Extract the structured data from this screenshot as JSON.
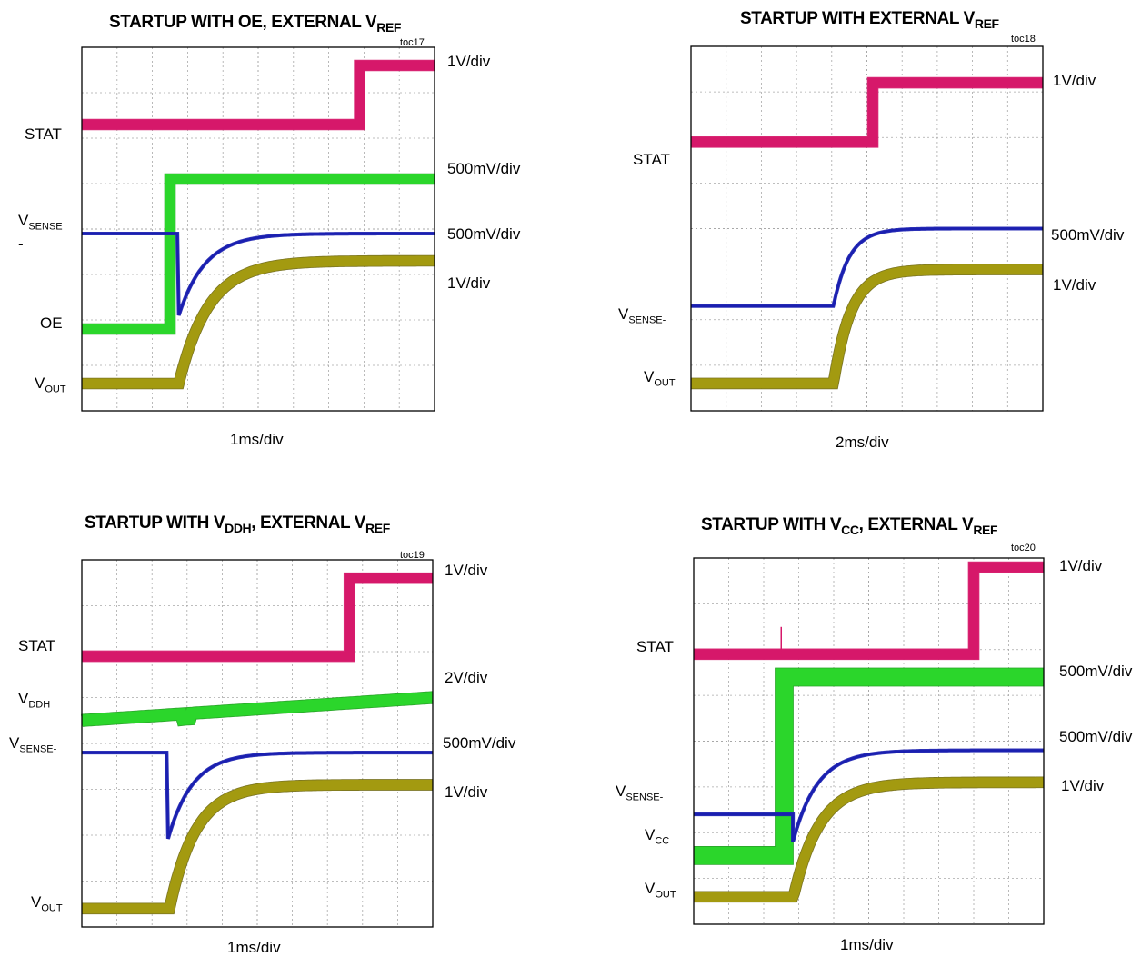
{
  "figures": [
    {
      "id": "toc17",
      "title": {
        "prefix": "STARTUP WITH OE, EXTERNAL V",
        "sub": "REF",
        "suffix": ""
      },
      "toc": "toc17",
      "xlabel": "1ms/div",
      "channel_labels": [
        {
          "main": "STAT",
          "sub": "",
          "rest": ""
        },
        {
          "main": "V",
          "sub": "SENSE",
          "rest": "-"
        },
        {
          "main": "OE",
          "sub": "",
          "rest": ""
        },
        {
          "main": "V",
          "sub": "OUT",
          "rest": ""
        }
      ],
      "scale_labels": [
        "1V/div",
        "500mV/div",
        "500mV/div",
        "1V/div"
      ]
    },
    {
      "id": "toc18",
      "title": {
        "prefix": "STARTUP WITH EXTERNAL V",
        "sub": "REF",
        "suffix": ""
      },
      "toc": "toc18",
      "xlabel": "2ms/div",
      "channel_labels": [
        {
          "main": "STAT",
          "sub": "",
          "rest": ""
        },
        {
          "main": "V",
          "sub": "SENSE-",
          "rest": ""
        },
        {
          "main": "V",
          "sub": "OUT",
          "rest": ""
        }
      ],
      "scale_labels": [
        "1V/div",
        "500mV/div",
        "1V/div"
      ]
    },
    {
      "id": "toc19",
      "title": {
        "prefix": "STARTUP WITH V",
        "sub": "DDH",
        "suffix": ", EXTERNAL V",
        "sub2": "REF"
      },
      "toc": "toc19",
      "xlabel": "1ms/div",
      "channel_labels": [
        {
          "main": "STAT",
          "sub": "",
          "rest": ""
        },
        {
          "main": "V",
          "sub": "DDH",
          "rest": ""
        },
        {
          "main": "V",
          "sub": "SENSE-",
          "rest": ""
        },
        {
          "main": "V",
          "sub": "OUT",
          "rest": ""
        }
      ],
      "scale_labels": [
        "1V/div",
        "2V/div",
        "500mV/div",
        "1V/div"
      ]
    },
    {
      "id": "toc20",
      "title": {
        "prefix": "STARTUP WITH V",
        "sub": "CC",
        "suffix": ", EXTERNAL V",
        "sub2": "REF"
      },
      "toc": "toc20",
      "xlabel": "1ms/div",
      "channel_labels": [
        {
          "main": "STAT",
          "sub": "",
          "rest": ""
        },
        {
          "main": "V",
          "sub": "SENSE-",
          "rest": ""
        },
        {
          "main": "V",
          "sub": "CC",
          "rest": ""
        },
        {
          "main": "V",
          "sub": "OUT",
          "rest": ""
        }
      ],
      "scale_labels": [
        "1V/div",
        "500mV/div",
        "500mV/div",
        "1V/div"
      ]
    }
  ],
  "colors": {
    "stat": "#d6186a",
    "green": "#2bd62b",
    "green_edge": "#139b13",
    "blue": "#1a1fb0",
    "vout": "#a39a10",
    "vout_edge": "#6b650a",
    "grid": "#a8a8a8"
  },
  "chart_data": [
    {
      "type": "line",
      "title": "STARTUP WITH OE, EXTERNAL VREF",
      "xlabel": "1ms/div",
      "x_divisions": 10,
      "y_divisions": 8,
      "x_unit": "div",
      "y_unit": "div",
      "series": [
        {
          "name": "STAT",
          "kind": "step",
          "low": 6.3,
          "high": 7.6,
          "t_edge": 7.85,
          "width": 0.22
        },
        {
          "name": "OE",
          "kind": "step",
          "low": 1.8,
          "high": 5.1,
          "t_edge": 2.5,
          "width": 0.22
        },
        {
          "name": "VSENSE-",
          "kind": "dip_recover",
          "base": 3.9,
          "t0": 2.75,
          "dip": 2.1,
          "tau": 0.75,
          "width": 0.05
        },
        {
          "name": "VOUT",
          "kind": "rise",
          "low": 0.6,
          "high": 3.3,
          "t0": 2.75,
          "tau": 0.85,
          "width": 0.22
        }
      ]
    },
    {
      "type": "line",
      "title": "STARTUP WITH EXTERNAL VREF",
      "xlabel": "2ms/div",
      "x_divisions": 10,
      "y_divisions": 8,
      "x_unit": "div",
      "y_unit": "div",
      "series": [
        {
          "name": "STAT",
          "kind": "step",
          "low": 5.9,
          "high": 7.2,
          "t_edge": 5.15,
          "width": 0.22
        },
        {
          "name": "VSENSE-",
          "kind": "rise",
          "low": 2.3,
          "high": 4.0,
          "t0": 4.05,
          "tau": 0.45,
          "width": 0.05
        },
        {
          "name": "VOUT",
          "kind": "rise",
          "low": 0.6,
          "high": 3.1,
          "t0": 4.05,
          "tau": 0.5,
          "width": 0.22
        }
      ]
    },
    {
      "type": "line",
      "title": "STARTUP WITH VDDH, EXTERNAL VREF",
      "xlabel": "1ms/div",
      "x_divisions": 10,
      "y_divisions": 8,
      "x_unit": "div",
      "y_unit": "div",
      "series": [
        {
          "name": "STAT",
          "kind": "step",
          "low": 5.9,
          "high": 7.6,
          "t_edge": 7.6,
          "width": 0.22
        },
        {
          "name": "VDDH",
          "kind": "ramp",
          "start": 4.5,
          "end": 5.0,
          "t_glitch": 2.85,
          "width": 0.25
        },
        {
          "name": "VSENSE-",
          "kind": "dip_recover",
          "base": 3.8,
          "t0": 2.45,
          "dip": 1.9,
          "tau": 0.7,
          "width": 0.05
        },
        {
          "name": "VOUT",
          "kind": "rise",
          "low": 0.4,
          "high": 3.1,
          "t0": 2.5,
          "tau": 0.75,
          "width": 0.22
        }
      ]
    },
    {
      "type": "line",
      "title": "STARTUP WITH VCC, EXTERNAL VREF",
      "xlabel": "1ms/div",
      "x_divisions": 10,
      "y_divisions": 8,
      "x_unit": "div",
      "y_unit": "div",
      "series": [
        {
          "name": "STAT",
          "kind": "step",
          "low": 5.9,
          "high": 7.8,
          "t_edge": 8.0,
          "width": 0.22,
          "spike_t": 2.5
        },
        {
          "name": "VCC",
          "kind": "step",
          "low": 1.5,
          "high": 5.4,
          "t_edge": 2.55,
          "width": 0.38
        },
        {
          "name": "VSENSE-",
          "kind": "dip_recover",
          "base": 3.8,
          "t0": 2.8,
          "dip": 1.7,
          "tau": 0.7,
          "width": 0.05,
          "pre": 2.4
        },
        {
          "name": "VOUT",
          "kind": "rise",
          "low": 0.6,
          "high": 3.1,
          "t0": 2.85,
          "tau": 0.75,
          "width": 0.22
        }
      ]
    }
  ]
}
